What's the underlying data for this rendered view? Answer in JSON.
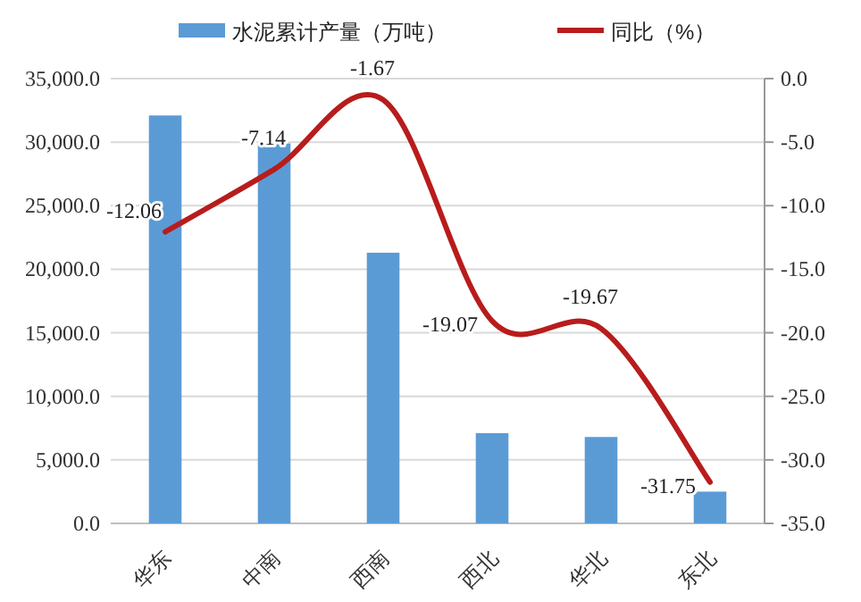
{
  "chart_data": {
    "type": "bar",
    "categories": [
      "华东",
      "中南",
      "西南",
      "西北",
      "华北",
      "东北"
    ],
    "series": [
      {
        "name": "水泥累计产量（万吨）",
        "color": "#5b9bd5",
        "values": [
          32100,
          29900,
          21300,
          7100,
          6800,
          2500
        ]
      },
      {
        "name": "同比（%）",
        "type": "line",
        "axis": "y2",
        "color": "#b81c1c",
        "values": [
          -12.06,
          -7.14,
          -1.67,
          -19.07,
          -19.67,
          -31.75
        ],
        "value_labels": [
          "-12.06",
          "-7.14",
          "-1.67",
          "-19.07",
          "-19.67",
          "-31.75"
        ]
      }
    ],
    "ylim": [
      0,
      35000
    ],
    "yticks": [
      {
        "value": 0,
        "label": "0.0"
      },
      {
        "value": 5000,
        "label": "5,000.0"
      },
      {
        "value": 10000,
        "label": "10,000.0"
      },
      {
        "value": 15000,
        "label": "15,000.0"
      },
      {
        "value": 20000,
        "label": "20,000.0"
      },
      {
        "value": 25000,
        "label": "25,000.0"
      },
      {
        "value": 30000,
        "label": "30,000.0"
      },
      {
        "value": 35000,
        "label": "35,000.0"
      }
    ],
    "y2lim": [
      -35,
      0
    ],
    "y2ticks": [
      {
        "value": 0,
        "label": "0.0"
      },
      {
        "value": -5,
        "label": "-5.0"
      },
      {
        "value": -10,
        "label": "-10.0"
      },
      {
        "value": -15,
        "label": "-15.0"
      },
      {
        "value": -20,
        "label": "-20.0"
      },
      {
        "value": -25,
        "label": "-25.0"
      },
      {
        "value": -30,
        "label": "-30.0"
      },
      {
        "value": -35,
        "label": "-35.0"
      }
    ],
    "grid": "y",
    "legend": "top",
    "marker": "none",
    "line_style": "solid"
  }
}
